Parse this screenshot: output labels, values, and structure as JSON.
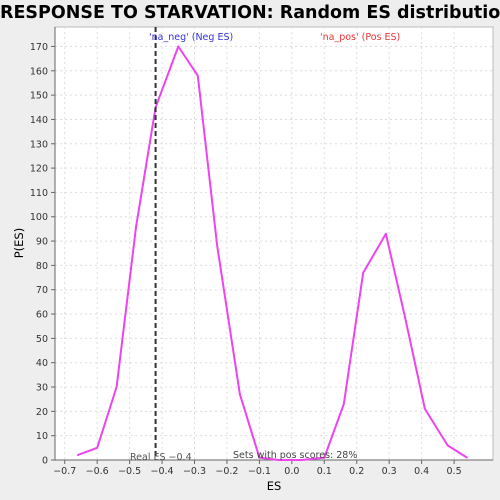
{
  "chart_data": {
    "type": "line",
    "title": "RESPONSE TO STARVATION: Random ES distribution",
    "xlabel": "ES",
    "ylabel": "P(ES)",
    "xlim": [
      -0.73,
      0.62
    ],
    "ylim": [
      0,
      178
    ],
    "x_ticks": [
      -0.7,
      -0.6,
      -0.5,
      -0.4,
      -0.3,
      -0.2,
      -0.1,
      0.0,
      0.1,
      0.2,
      0.3,
      0.4,
      0.5
    ],
    "x_tick_labels": [
      "−0.7",
      "−0.6",
      "−0.5",
      "−0.4",
      "−0.3",
      "−0.2",
      "−0.1",
      "0.0",
      "0.1",
      "0.2",
      "0.3",
      "0.4",
      "0.5"
    ],
    "y_ticks": [
      0,
      10,
      20,
      30,
      40,
      50,
      60,
      70,
      80,
      90,
      100,
      110,
      120,
      130,
      140,
      150,
      160,
      170
    ],
    "grid": true,
    "series": [
      {
        "color": "#ee44ee",
        "points": [
          [
            -0.66,
            2
          ],
          [
            -0.6,
            5
          ],
          [
            -0.54,
            30
          ],
          [
            -0.48,
            96
          ],
          [
            -0.42,
            145
          ],
          [
            -0.35,
            170
          ],
          [
            -0.29,
            158
          ],
          [
            -0.23,
            88
          ],
          [
            -0.16,
            27
          ],
          [
            -0.1,
            1
          ],
          [
            -0.04,
            0
          ],
          [
            0.03,
            0
          ],
          [
            0.1,
            1
          ],
          [
            0.16,
            23
          ],
          [
            0.22,
            77
          ],
          [
            0.29,
            93
          ],
          [
            0.35,
            58
          ],
          [
            0.41,
            21
          ],
          [
            0.48,
            6
          ],
          [
            0.54,
            1
          ]
        ]
      }
    ],
    "vline": {
      "x": -0.42,
      "color": "#333333"
    },
    "annotations": {
      "neg": {
        "text": "'na_neg' (Neg ES)",
        "color": "#3333dd"
      },
      "pos": {
        "text": "'na_pos' (Pos ES)",
        "color": "#ee3333"
      },
      "real_es": {
        "text": "Real ES −0.4",
        "color": "#555555"
      },
      "pos_scores": {
        "text": "Sets with pos scores: 28%",
        "color": "#444444"
      }
    }
  }
}
